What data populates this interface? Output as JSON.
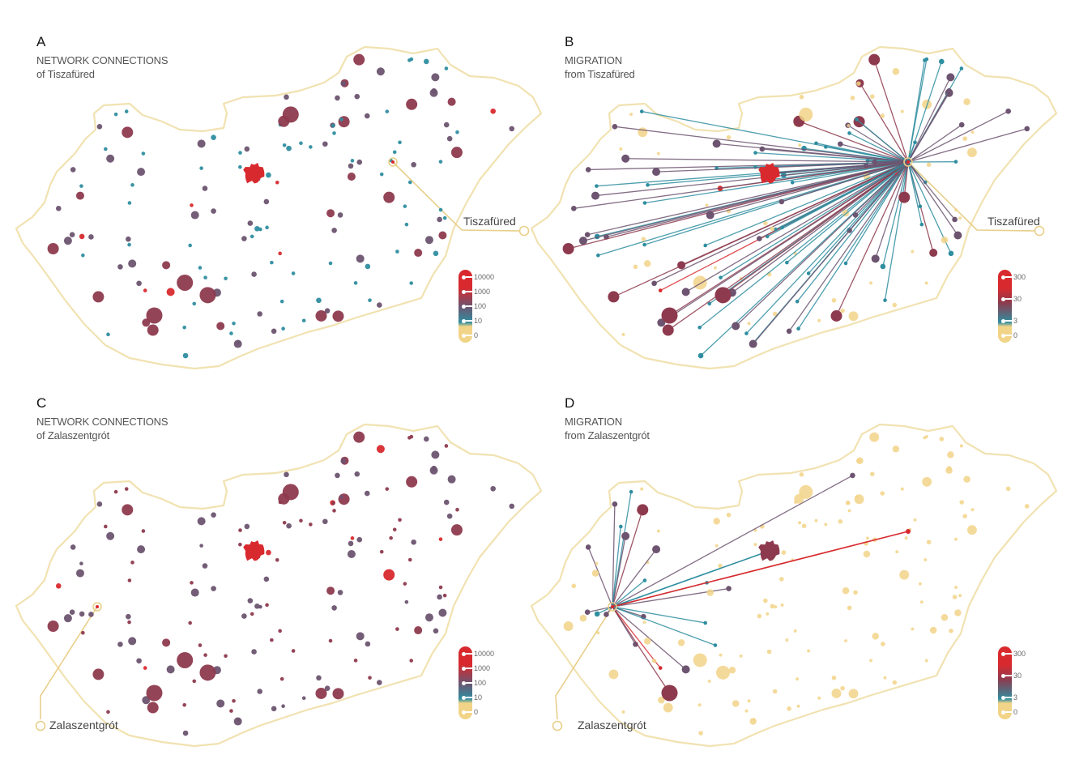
{
  "colors": {
    "outline": "#f0dfa8",
    "zero": "#f2d488",
    "low": "#2f8ea0",
    "mid": "#6d5470",
    "high_mid": "#8e3a4e",
    "high": "#d82a2e",
    "callout": "#e8cf8a"
  },
  "panels": [
    {
      "id": "A",
      "letter": "A",
      "title_line1": "NETWORK CONNECTIONS",
      "title_line2": "of Tiszafüred",
      "callout_label": "Tiszafüred",
      "legend": {
        "labels": [
          "10000",
          "1000",
          "100",
          "10",
          "0"
        ]
      },
      "type": "network"
    },
    {
      "id": "B",
      "letter": "B",
      "title_line1": "MIGRATION",
      "title_line2": "from Tiszafüred",
      "callout_label": "Tiszafüred",
      "legend": {
        "labels": [
          "300",
          "30",
          "3",
          "0"
        ]
      },
      "type": "migration"
    },
    {
      "id": "C",
      "letter": "C",
      "title_line1": "NETWORK CONNECTIONS",
      "title_line2": "of Zalaszentgrót",
      "callout_label": "Zalaszentgrót",
      "legend": {
        "labels": [
          "10000",
          "1000",
          "100",
          "10",
          "0"
        ]
      },
      "type": "network"
    },
    {
      "id": "D",
      "letter": "D",
      "title_line1": "MIGRATION",
      "title_line2": "from Zalaszentgrót",
      "callout_label": "Zalaszentgrót",
      "legend": {
        "labels": [
          "300",
          "30",
          "3",
          "0"
        ]
      },
      "type": "migration"
    }
  ],
  "chart_data": [
    {
      "type": "map",
      "title": "NETWORK CONNECTIONS of Tiszafüred",
      "focus_town": "Tiszafüred",
      "legend": {
        "scale": [
          "0",
          "10",
          "100",
          "1000",
          "10000"
        ],
        "colors": [
          "#f2d488",
          "#2f8ea0",
          "#6d5470",
          "#8e3a4e",
          "#d82a2e"
        ]
      }
    },
    {
      "type": "map",
      "title": "MIGRATION from Tiszafüred",
      "focus_town": "Tiszafüred",
      "legend": {
        "scale": [
          "0",
          "3",
          "30",
          "300"
        ],
        "colors": [
          "#f2d488",
          "#2f8ea0",
          "#8e3a4e",
          "#d82a2e"
        ]
      }
    },
    {
      "type": "map",
      "title": "NETWORK CONNECTIONS of Zalaszentgrót",
      "focus_town": "Zalaszentgrót",
      "legend": {
        "scale": [
          "0",
          "10",
          "100",
          "1000",
          "10000"
        ],
        "colors": [
          "#f2d488",
          "#2f8ea0",
          "#6d5470",
          "#8e3a4e",
          "#d82a2e"
        ]
      }
    },
    {
      "type": "map",
      "title": "MIGRATION from Zalaszentgrót",
      "focus_town": "Zalaszentgrót",
      "legend": {
        "scale": [
          "0",
          "3",
          "30",
          "300"
        ],
        "colors": [
          "#f2d488",
          "#2f8ea0",
          "#8e3a4e",
          "#d82a2e"
        ]
      }
    }
  ]
}
